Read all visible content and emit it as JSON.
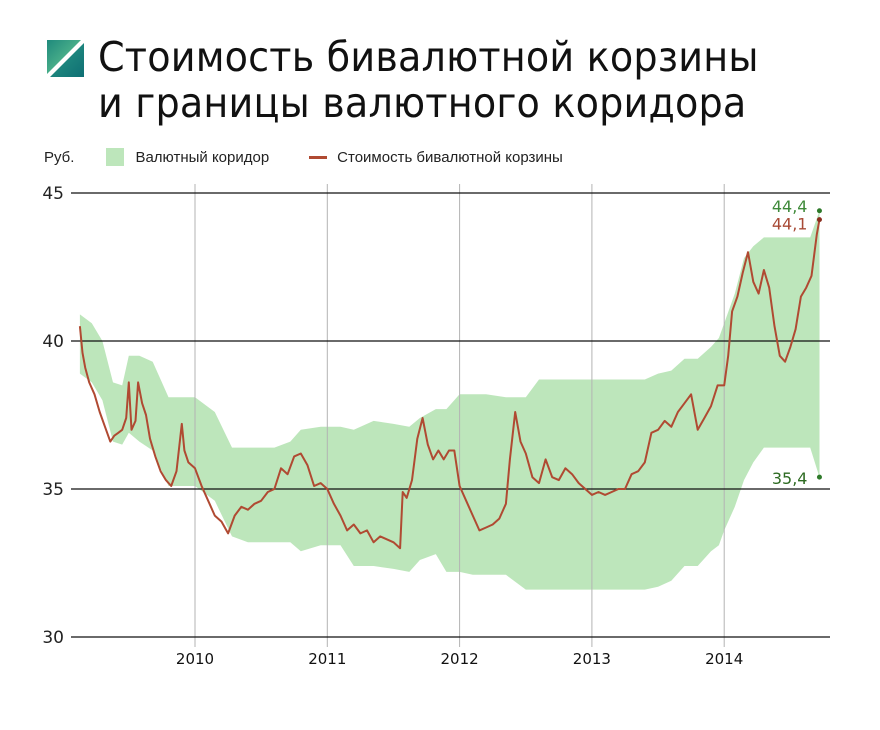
{
  "title": {
    "line1": "Стоимость бивалютной корзины",
    "line2": "и границы валютного коридора"
  },
  "legend": {
    "unit": "Руб.",
    "band_label": "Валютный коридор",
    "line_label": "Стоимость бивалютной корзины"
  },
  "colors": {
    "band": "#bde6bb",
    "line": "#b04a32",
    "upper_label": "#3f8a3a",
    "lower_label": "#2e6b22",
    "basket_label": "#a84a36",
    "logo_light": "#5fc28f",
    "logo_dark": "#137a7a"
  },
  "annotations": {
    "upper_end": "44,4",
    "basket_end": "44,1",
    "lower_end": "35,4"
  },
  "chart_data": {
    "type": "area",
    "title": "Стоимость бивалютной корзины и границы валютного коридора",
    "xlabel": "",
    "ylabel": "Руб.",
    "ylim": [
      30,
      45
    ],
    "yticks": [
      "30",
      "35",
      "40",
      "45"
    ],
    "xticks": [
      "2010",
      "2011",
      "2012",
      "2013",
      "2014"
    ],
    "grid": true,
    "legend_position": "top-left",
    "band": {
      "name": "Валютный коридор",
      "x": [
        2009.13,
        2009.22,
        2009.3,
        2009.38,
        2009.45,
        2009.5,
        2009.58,
        2009.68,
        2009.8,
        2010.0,
        2010.15,
        2010.28,
        2010.4,
        2010.6,
        2010.72,
        2010.8,
        2010.95,
        2011.1,
        2011.2,
        2011.35,
        2011.5,
        2011.62,
        2011.7,
        2011.82,
        2011.9,
        2012.0,
        2012.1,
        2012.2,
        2012.35,
        2012.5,
        2012.6,
        2012.75,
        2013.0,
        2013.25,
        2013.4,
        2013.5,
        2013.6,
        2013.7,
        2013.8,
        2013.9,
        2013.96,
        2014.0,
        2014.08,
        2014.15,
        2014.22,
        2014.3,
        2014.45,
        2014.65,
        2014.72
      ],
      "upper": [
        40.9,
        40.6,
        40.0,
        38.6,
        38.5,
        39.5,
        39.5,
        39.3,
        38.1,
        38.1,
        37.6,
        36.4,
        36.4,
        36.4,
        36.6,
        37.0,
        37.1,
        37.1,
        37.0,
        37.3,
        37.2,
        37.1,
        37.4,
        37.7,
        37.7,
        38.2,
        38.2,
        38.2,
        38.1,
        38.1,
        38.7,
        38.7,
        38.7,
        38.7,
        38.7,
        38.9,
        39.0,
        39.4,
        39.4,
        39.8,
        40.1,
        40.6,
        41.6,
        42.8,
        43.2,
        43.5,
        43.5,
        43.5,
        44.4
      ],
      "lower": [
        38.9,
        38.6,
        38.0,
        36.6,
        36.5,
        36.9,
        36.6,
        36.3,
        35.1,
        35.1,
        34.6,
        33.4,
        33.2,
        33.2,
        33.2,
        32.9,
        33.1,
        33.1,
        32.4,
        32.4,
        32.3,
        32.2,
        32.6,
        32.8,
        32.2,
        32.2,
        32.1,
        32.1,
        32.1,
        31.6,
        31.6,
        31.6,
        31.6,
        31.6,
        31.6,
        31.7,
        31.9,
        32.4,
        32.4,
        32.9,
        33.1,
        33.6,
        34.4,
        35.3,
        35.9,
        36.4,
        36.4,
        36.4,
        35.4
      ]
    },
    "series": [
      {
        "name": "Стоимость бивалютной корзины",
        "x": [
          2009.13,
          2009.15,
          2009.17,
          2009.2,
          2009.24,
          2009.28,
          2009.32,
          2009.36,
          2009.39,
          2009.42,
          2009.45,
          2009.48,
          2009.5,
          2009.52,
          2009.55,
          2009.57,
          2009.6,
          2009.63,
          2009.66,
          2009.7,
          2009.74,
          2009.78,
          2009.82,
          2009.86,
          2009.9,
          2009.92,
          2009.95,
          2010.0,
          2010.05,
          2010.1,
          2010.15,
          2010.2,
          2010.25,
          2010.3,
          2010.35,
          2010.4,
          2010.45,
          2010.5,
          2010.55,
          2010.6,
          2010.65,
          2010.7,
          2010.75,
          2010.8,
          2010.85,
          2010.9,
          2010.95,
          2011.0,
          2011.05,
          2011.1,
          2011.15,
          2011.2,
          2011.25,
          2011.3,
          2011.35,
          2011.4,
          2011.45,
          2011.5,
          2011.55,
          2011.57,
          2011.6,
          2011.64,
          2011.68,
          2011.72,
          2011.76,
          2011.8,
          2011.84,
          2011.88,
          2011.92,
          2011.96,
          2012.0,
          2012.05,
          2012.1,
          2012.15,
          2012.2,
          2012.25,
          2012.3,
          2012.35,
          2012.38,
          2012.42,
          2012.46,
          2012.5,
          2012.55,
          2012.6,
          2012.65,
          2012.7,
          2012.75,
          2012.8,
          2012.85,
          2012.9,
          2012.95,
          2013.0,
          2013.05,
          2013.1,
          2013.15,
          2013.2,
          2013.25,
          2013.3,
          2013.35,
          2013.4,
          2013.45,
          2013.5,
          2013.55,
          2013.6,
          2013.65,
          2013.7,
          2013.75,
          2013.8,
          2013.85,
          2013.9,
          2013.95,
          2014.0,
          2014.03,
          2014.06,
          2014.1,
          2014.14,
          2014.18,
          2014.22,
          2014.26,
          2014.3,
          2014.34,
          2014.38,
          2014.42,
          2014.46,
          2014.5,
          2014.54,
          2014.58,
          2014.62,
          2014.66,
          2014.7,
          2014.72
        ],
        "values": [
          40.5,
          39.6,
          39.1,
          38.6,
          38.2,
          37.6,
          37.1,
          36.6,
          36.8,
          36.9,
          37.0,
          37.4,
          38.6,
          37.0,
          37.3,
          38.6,
          37.9,
          37.5,
          36.7,
          36.1,
          35.6,
          35.3,
          35.1,
          35.6,
          37.2,
          36.3,
          35.9,
          35.7,
          35.1,
          34.6,
          34.1,
          33.9,
          33.5,
          34.1,
          34.4,
          34.3,
          34.5,
          34.6,
          34.9,
          35.0,
          35.7,
          35.5,
          36.1,
          36.2,
          35.8,
          35.1,
          35.2,
          35.0,
          34.5,
          34.1,
          33.6,
          33.8,
          33.5,
          33.6,
          33.2,
          33.4,
          33.3,
          33.2,
          33.0,
          34.9,
          34.7,
          35.3,
          36.7,
          37.4,
          36.5,
          36.0,
          36.3,
          36.0,
          36.3,
          36.3,
          35.1,
          34.6,
          34.1,
          33.6,
          33.7,
          33.8,
          34.0,
          34.5,
          36.0,
          37.6,
          36.6,
          36.2,
          35.4,
          35.2,
          36.0,
          35.4,
          35.3,
          35.7,
          35.5,
          35.2,
          35.0,
          34.8,
          34.9,
          34.8,
          34.9,
          35.0,
          35.0,
          35.5,
          35.6,
          35.9,
          36.9,
          37.0,
          37.3,
          37.1,
          37.6,
          37.9,
          38.2,
          37.0,
          37.4,
          37.8,
          38.5,
          38.5,
          39.5,
          41.0,
          41.5,
          42.3,
          43.0,
          42.0,
          41.6,
          42.4,
          41.8,
          40.5,
          39.5,
          39.3,
          39.8,
          40.4,
          41.5,
          41.8,
          42.2,
          43.6,
          44.1
        ]
      }
    ],
    "annotations": [
      {
        "label": "44,4",
        "value": 44.4,
        "series": "upper band end"
      },
      {
        "label": "44,1",
        "value": 44.1,
        "series": "basket end"
      },
      {
        "label": "35,4",
        "value": 35.4,
        "series": "lower band end"
      }
    ]
  }
}
